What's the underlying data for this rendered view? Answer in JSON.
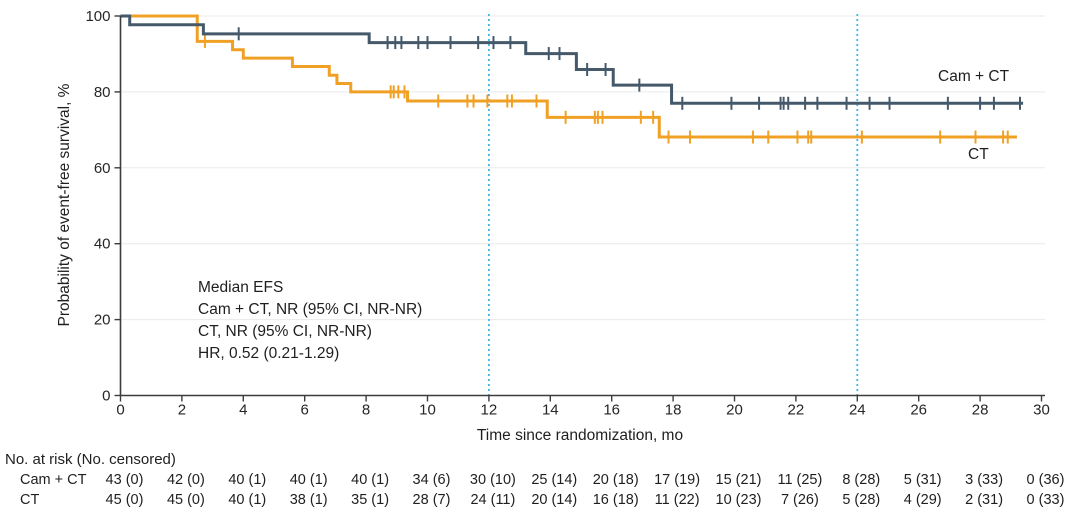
{
  "chart_data": {
    "type": "line",
    "subtype": "kaplan-meier-step",
    "title": "",
    "xlabel": "Time since randomization, mo",
    "ylabel": "Probability of event-free survival, %",
    "xlim": [
      0,
      30
    ],
    "ylim": [
      0,
      100
    ],
    "x_ticks": [
      0,
      2,
      4,
      6,
      8,
      10,
      12,
      14,
      16,
      18,
      20,
      22,
      24,
      26,
      28,
      30
    ],
    "y_ticks": [
      0,
      20,
      40,
      60,
      80,
      100
    ],
    "grid": "horizontal-light",
    "grid_color": "#eaeaea",
    "axis_color": "#3c3c3c",
    "reference_lines": {
      "months": [
        12,
        24
      ],
      "style": "dotted",
      "color": "#41b6e9"
    },
    "series": [
      {
        "name": "Cam + CT",
        "slug": "camct",
        "color": "#45596a",
        "start_pct": 100,
        "end_month": 29.4,
        "steps": [
          [
            0.3,
            97.7
          ],
          [
            2.7,
            95.3
          ],
          [
            8.1,
            93.0
          ],
          [
            13.2,
            90.1
          ],
          [
            14.85,
            85.9
          ],
          [
            16.05,
            81.8
          ],
          [
            17.95,
            77.0
          ]
        ],
        "censor_months": [
          3.85,
          8.7,
          8.95,
          9.15,
          9.7,
          10.0,
          10.75,
          11.65,
          12.15,
          12.7,
          13.95,
          14.3,
          15.2,
          15.8,
          16.9,
          18.3,
          19.9,
          20.8,
          21.5,
          21.6,
          21.75,
          22.3,
          22.7,
          23.65,
          24.4,
          25.05,
          26.95,
          28.0,
          28.45,
          29.3
        ]
      },
      {
        "name": "CT",
        "slug": "ct",
        "color": "#f0a125",
        "start_pct": 100,
        "end_month": 29.2,
        "steps": [
          [
            2.5,
            93.3
          ],
          [
            3.65,
            91.1
          ],
          [
            4.0,
            88.9
          ],
          [
            5.6,
            86.7
          ],
          [
            6.8,
            84.4
          ],
          [
            7.05,
            82.2
          ],
          [
            7.5,
            80.0
          ],
          [
            9.35,
            77.6
          ],
          [
            13.9,
            73.3
          ],
          [
            17.55,
            68.1
          ]
        ],
        "censor_months": [
          2.75,
          8.8,
          8.9,
          9.05,
          9.25,
          10.35,
          11.3,
          11.5,
          11.95,
          12.6,
          12.75,
          13.55,
          14.5,
          15.45,
          15.55,
          15.7,
          16.95,
          17.35,
          17.85,
          18.55,
          20.6,
          21.1,
          22.05,
          22.4,
          22.5,
          24.15,
          26.7,
          27.85,
          28.75,
          28.9
        ]
      }
    ],
    "annotation": [
      "Median EFS",
      "Cam + CT, NR (95% CI, NR-NR)",
      "CT, NR (95% CI, NR-NR)",
      "HR, 0.52 (0.21-1.29)"
    ]
  },
  "risk_table": {
    "header": "No. at risk (No. censored)",
    "months": [
      0,
      2,
      4,
      6,
      8,
      10,
      12,
      14,
      16,
      18,
      20,
      22,
      24,
      26,
      28,
      30
    ],
    "rows": [
      {
        "label": "Cam + CT",
        "values": [
          "43 (0)",
          "42 (0)",
          "40 (1)",
          "40 (1)",
          "40 (1)",
          "34 (6)",
          "30 (10)",
          "25 (14)",
          "20 (18)",
          "17 (19)",
          "15 (21)",
          "11 (25)",
          "8 (28)",
          "5 (31)",
          "3 (33)",
          "0 (36)"
        ]
      },
      {
        "label": "CT",
        "values": [
          "45 (0)",
          "45 (0)",
          "40 (1)",
          "38 (1)",
          "35 (1)",
          "28 (7)",
          "24 (11)",
          "20 (14)",
          "16 (18)",
          "11 (22)",
          "10 (23)",
          "7 (26)",
          "5 (28)",
          "4 (29)",
          "2 (31)",
          "0 (33)"
        ]
      }
    ]
  }
}
